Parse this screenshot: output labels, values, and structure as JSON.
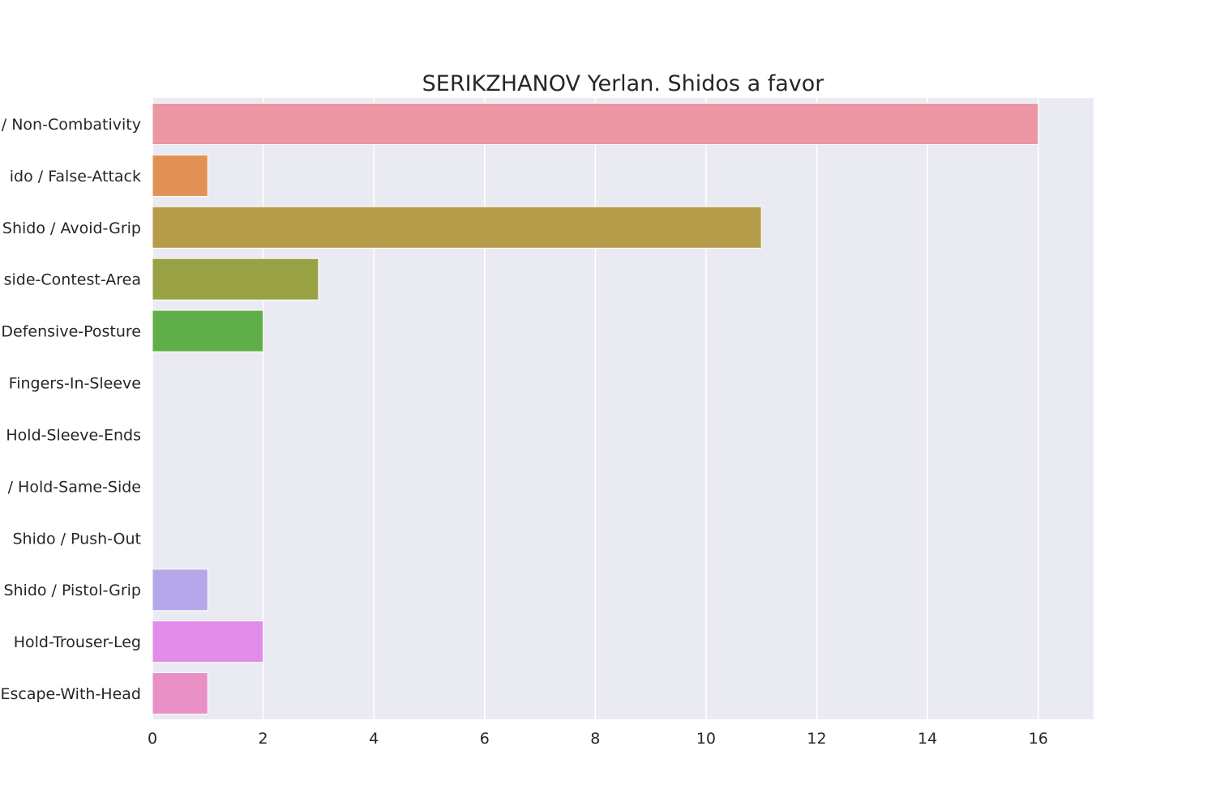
{
  "chart_data": {
    "type": "bar",
    "orientation": "horizontal",
    "title": "SERIKZHANOV Yerlan. Shidos a favor",
    "xlabel": "",
    "ylabel": "",
    "xlim": [
      0,
      17
    ],
    "xticks": [
      0,
      2,
      4,
      6,
      8,
      10,
      12,
      14,
      16
    ],
    "grid": true,
    "categories": [
      "/ Non-Combativity",
      "ido / False-Attack",
      "Shido / Avoid-Grip",
      "side-Contest-Area",
      "Defensive-Posture",
      "Fingers-In-Sleeve",
      "Hold-Sleeve-Ends",
      "/ Hold-Same-Side",
      "Shido / Push-Out",
      "Shido / Pistol-Grip",
      "Hold-Trouser-Leg",
      "Escape-With-Head"
    ],
    "values": [
      16,
      1,
      11,
      3,
      2,
      0,
      0,
      0,
      0,
      1,
      2,
      1
    ],
    "colors": [
      "#ea96a3",
      "#e19153",
      "#b79c4a",
      "#98a245",
      "#60ae47",
      "#61b08f",
      "#64ab9a",
      "#67aec4",
      "#6fa9e0",
      "#b6a7eb",
      "#e08ce8",
      "#e890c6"
    ],
    "background_color": "#eaeaf2",
    "grid_color": "#ffffff"
  }
}
